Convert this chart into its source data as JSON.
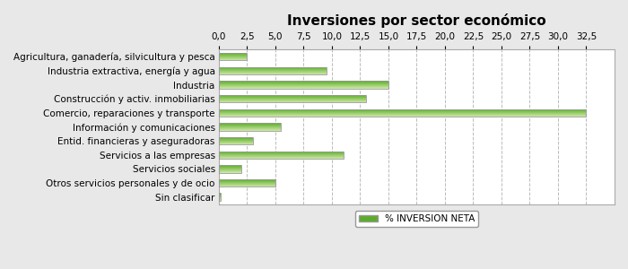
{
  "title": "Inversiones por sector económico",
  "categories": [
    "Agricultura, ganadería, silvicultura y pesca",
    "Industria extractiva, energía y agua",
    "Industria",
    "Construcción y activ. inmobiliarias",
    "Comercio, reparaciones y transporte",
    "Información y comunicaciones",
    "Entid. financieras y aseguradoras",
    "Servicios a las empresas",
    "Servicios sociales",
    "Otros servicios personales y de ocio",
    "Sin clasificar"
  ],
  "values": [
    2.5,
    9.5,
    15.0,
    13.0,
    32.5,
    5.5,
    3.0,
    11.0,
    2.0,
    5.0,
    0.2
  ],
  "xlim": [
    0,
    35
  ],
  "xticks": [
    0.0,
    2.5,
    5.0,
    7.5,
    10.0,
    12.5,
    15.0,
    17.5,
    20.0,
    22.5,
    25.0,
    27.5,
    30.0,
    32.5
  ],
  "xtick_labels": [
    "0,0",
    "2,5",
    "5,0",
    "7,5",
    "10,0",
    "12,5",
    "15,0",
    "17,5",
    "20,0",
    "22,5",
    "25,0",
    "27,5",
    "30,0",
    "32,5"
  ],
  "legend_label": "% INVERSION NETA",
  "bar_color_top": "#5aad28",
  "bar_color_bottom": "#d0e8a8",
  "bar_edge_color": "#999999",
  "plot_bg_color": "#ffffff",
  "fig_bg_color": "#e8e8e8",
  "title_fontsize": 11,
  "tick_fontsize": 7.5,
  "label_fontsize": 7.5
}
